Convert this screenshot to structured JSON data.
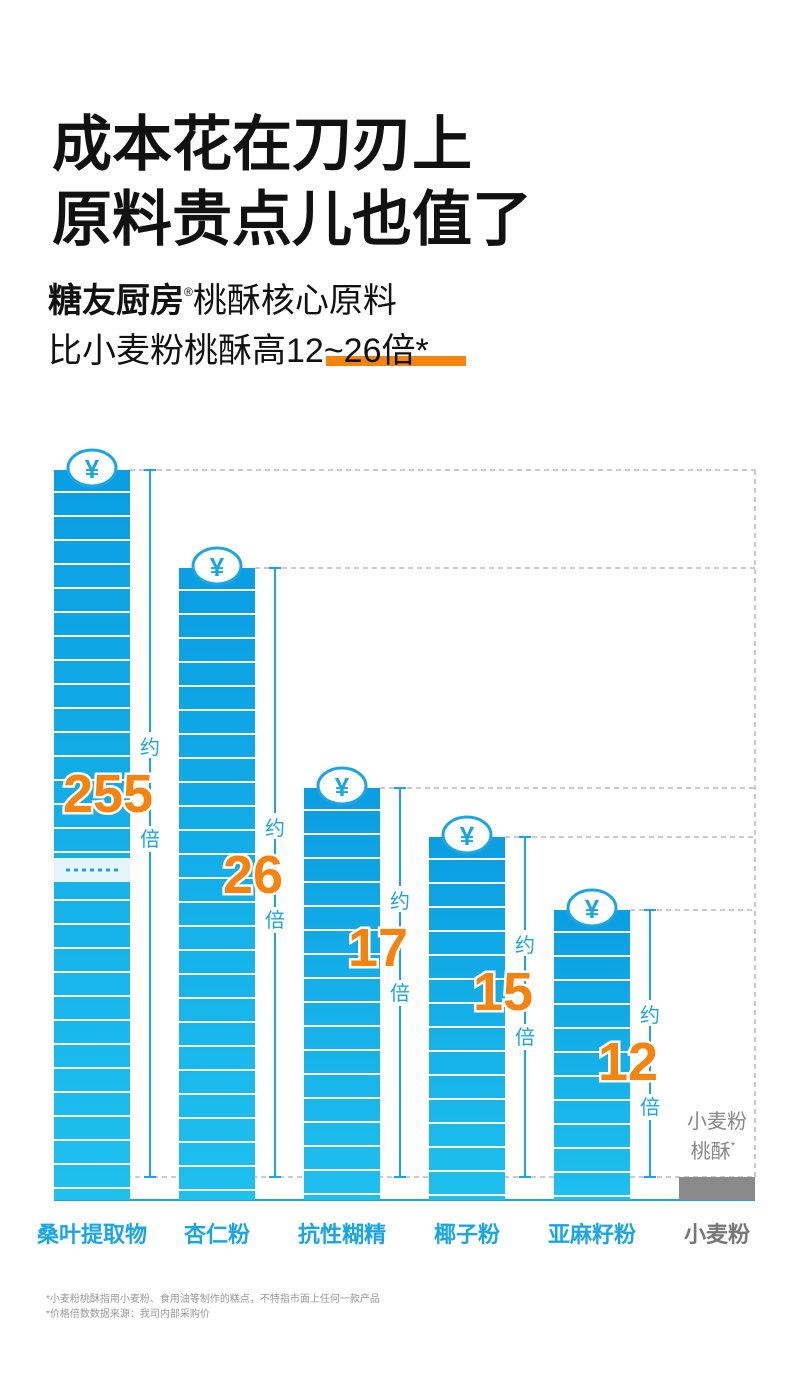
{
  "title": [
    "成本花在刀刃上",
    "原料贵点儿也值了"
  ],
  "subtitle": {
    "brand": "糖友厨房",
    "reg": "®",
    "line1_rest": "桃酥核心原料",
    "line2_pre": "比小麦粉桃酥高",
    "line2_highlight": "12~26倍",
    "line2_mark": "*"
  },
  "coin": "¥",
  "items": [
    {
      "label": "桑叶提取物",
      "prefix": "约",
      "value": 255,
      "suffix": "倍"
    },
    {
      "label": "杏仁粉",
      "prefix": "约",
      "value": 26,
      "suffix": "倍"
    },
    {
      "label": "抗性糊精",
      "prefix": "约",
      "value": 17,
      "suffix": "倍"
    },
    {
      "label": "椰子粉",
      "prefix": "约",
      "value": 15,
      "suffix": "倍"
    },
    {
      "label": "亚麻籽粉",
      "prefix": "约",
      "value": 12,
      "suffix": "倍"
    }
  ],
  "baseline": {
    "label": "小麦粉",
    "note": [
      "小麦粉",
      "桃酥"
    ],
    "mark": "*"
  },
  "footnotes": [
    "*小麦粉桃酥指用小麦粉、食用油等制作的糕点，不特指市面上任何一款产品",
    "*价格倍数数据来源：我司内部采购价"
  ]
}
